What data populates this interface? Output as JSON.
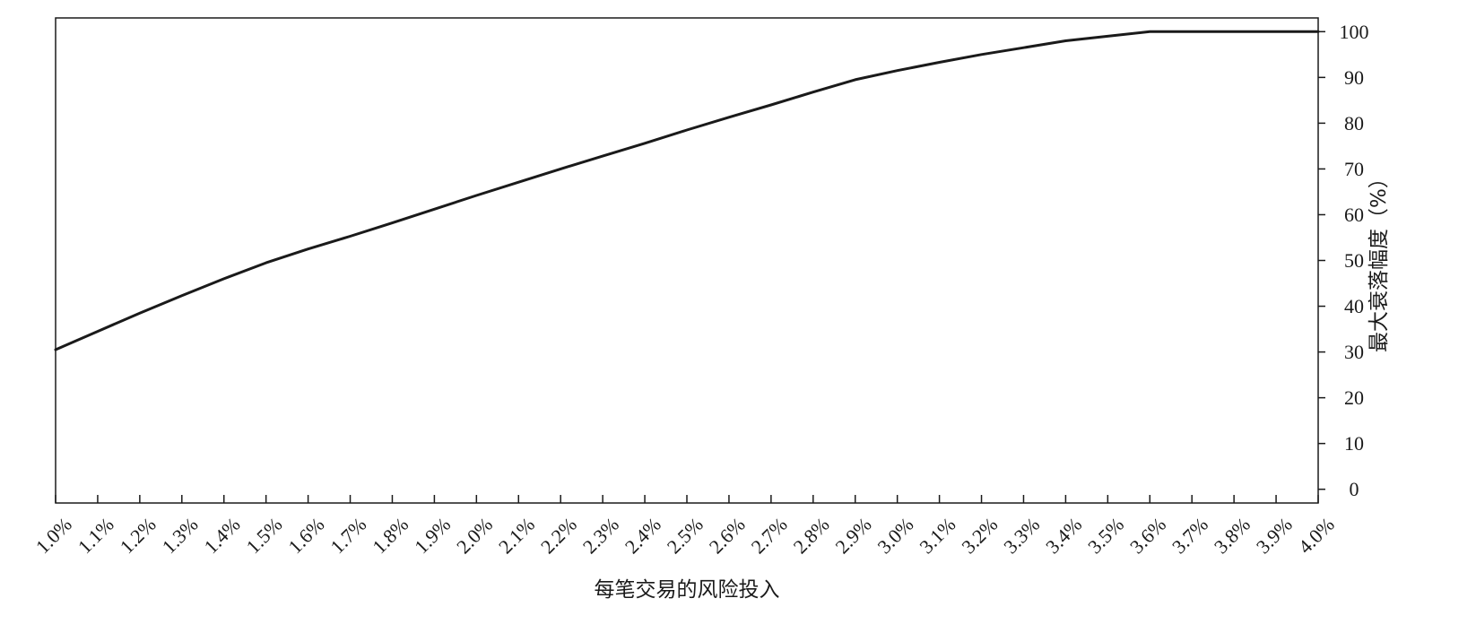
{
  "chart_data": {
    "type": "line",
    "title": "",
    "xlabel": "每笔交易的风险投入",
    "ylabel": "最大衰落幅度（%）",
    "x_tick_labels": [
      "1.0%",
      "1.1%",
      "1.2%",
      "1.3%",
      "1.4%",
      "1.5%",
      "1.6%",
      "1.7%",
      "1.8%",
      "1.9%",
      "2.0%",
      "2.1%",
      "2.2%",
      "2.3%",
      "2.4%",
      "2.5%",
      "2.6%",
      "2.7%",
      "2.8%",
      "2.9%",
      "3.0%",
      "3.1%",
      "3.2%",
      "3.3%",
      "3.4%",
      "3.5%",
      "3.6%",
      "3.7%",
      "3.8%",
      "3.9%",
      "4.0%"
    ],
    "y_tick_labels": [
      "0",
      "10",
      "20",
      "30",
      "40",
      "50",
      "60",
      "70",
      "80",
      "90",
      "100"
    ],
    "xlim": [
      1.0,
      4.0
    ],
    "ylim": [
      -3,
      103
    ],
    "y_axis_side": "right",
    "grid": false,
    "series": [
      {
        "x": [
          1.0,
          1.1,
          1.2,
          1.3,
          1.4,
          1.5,
          1.6,
          1.7,
          1.8,
          1.9,
          2.0,
          2.1,
          2.2,
          2.3,
          2.4,
          2.5,
          2.6,
          2.7,
          2.8,
          2.9,
          3.0,
          3.1,
          3.2,
          3.3,
          3.4,
          3.5,
          3.6,
          3.7,
          3.8,
          3.9,
          4.0
        ],
        "y": [
          30.5,
          34.5,
          38.5,
          42.3,
          46.0,
          49.5,
          52.5,
          55.3,
          58.2,
          61.2,
          64.2,
          67.1,
          70.0,
          72.8,
          75.6,
          78.5,
          81.3,
          84.0,
          86.8,
          89.5,
          91.5,
          93.3,
          95.0,
          96.5,
          98.0,
          99.0,
          100,
          100,
          100,
          100,
          100
        ],
        "color": "#1a1a1a"
      }
    ]
  }
}
